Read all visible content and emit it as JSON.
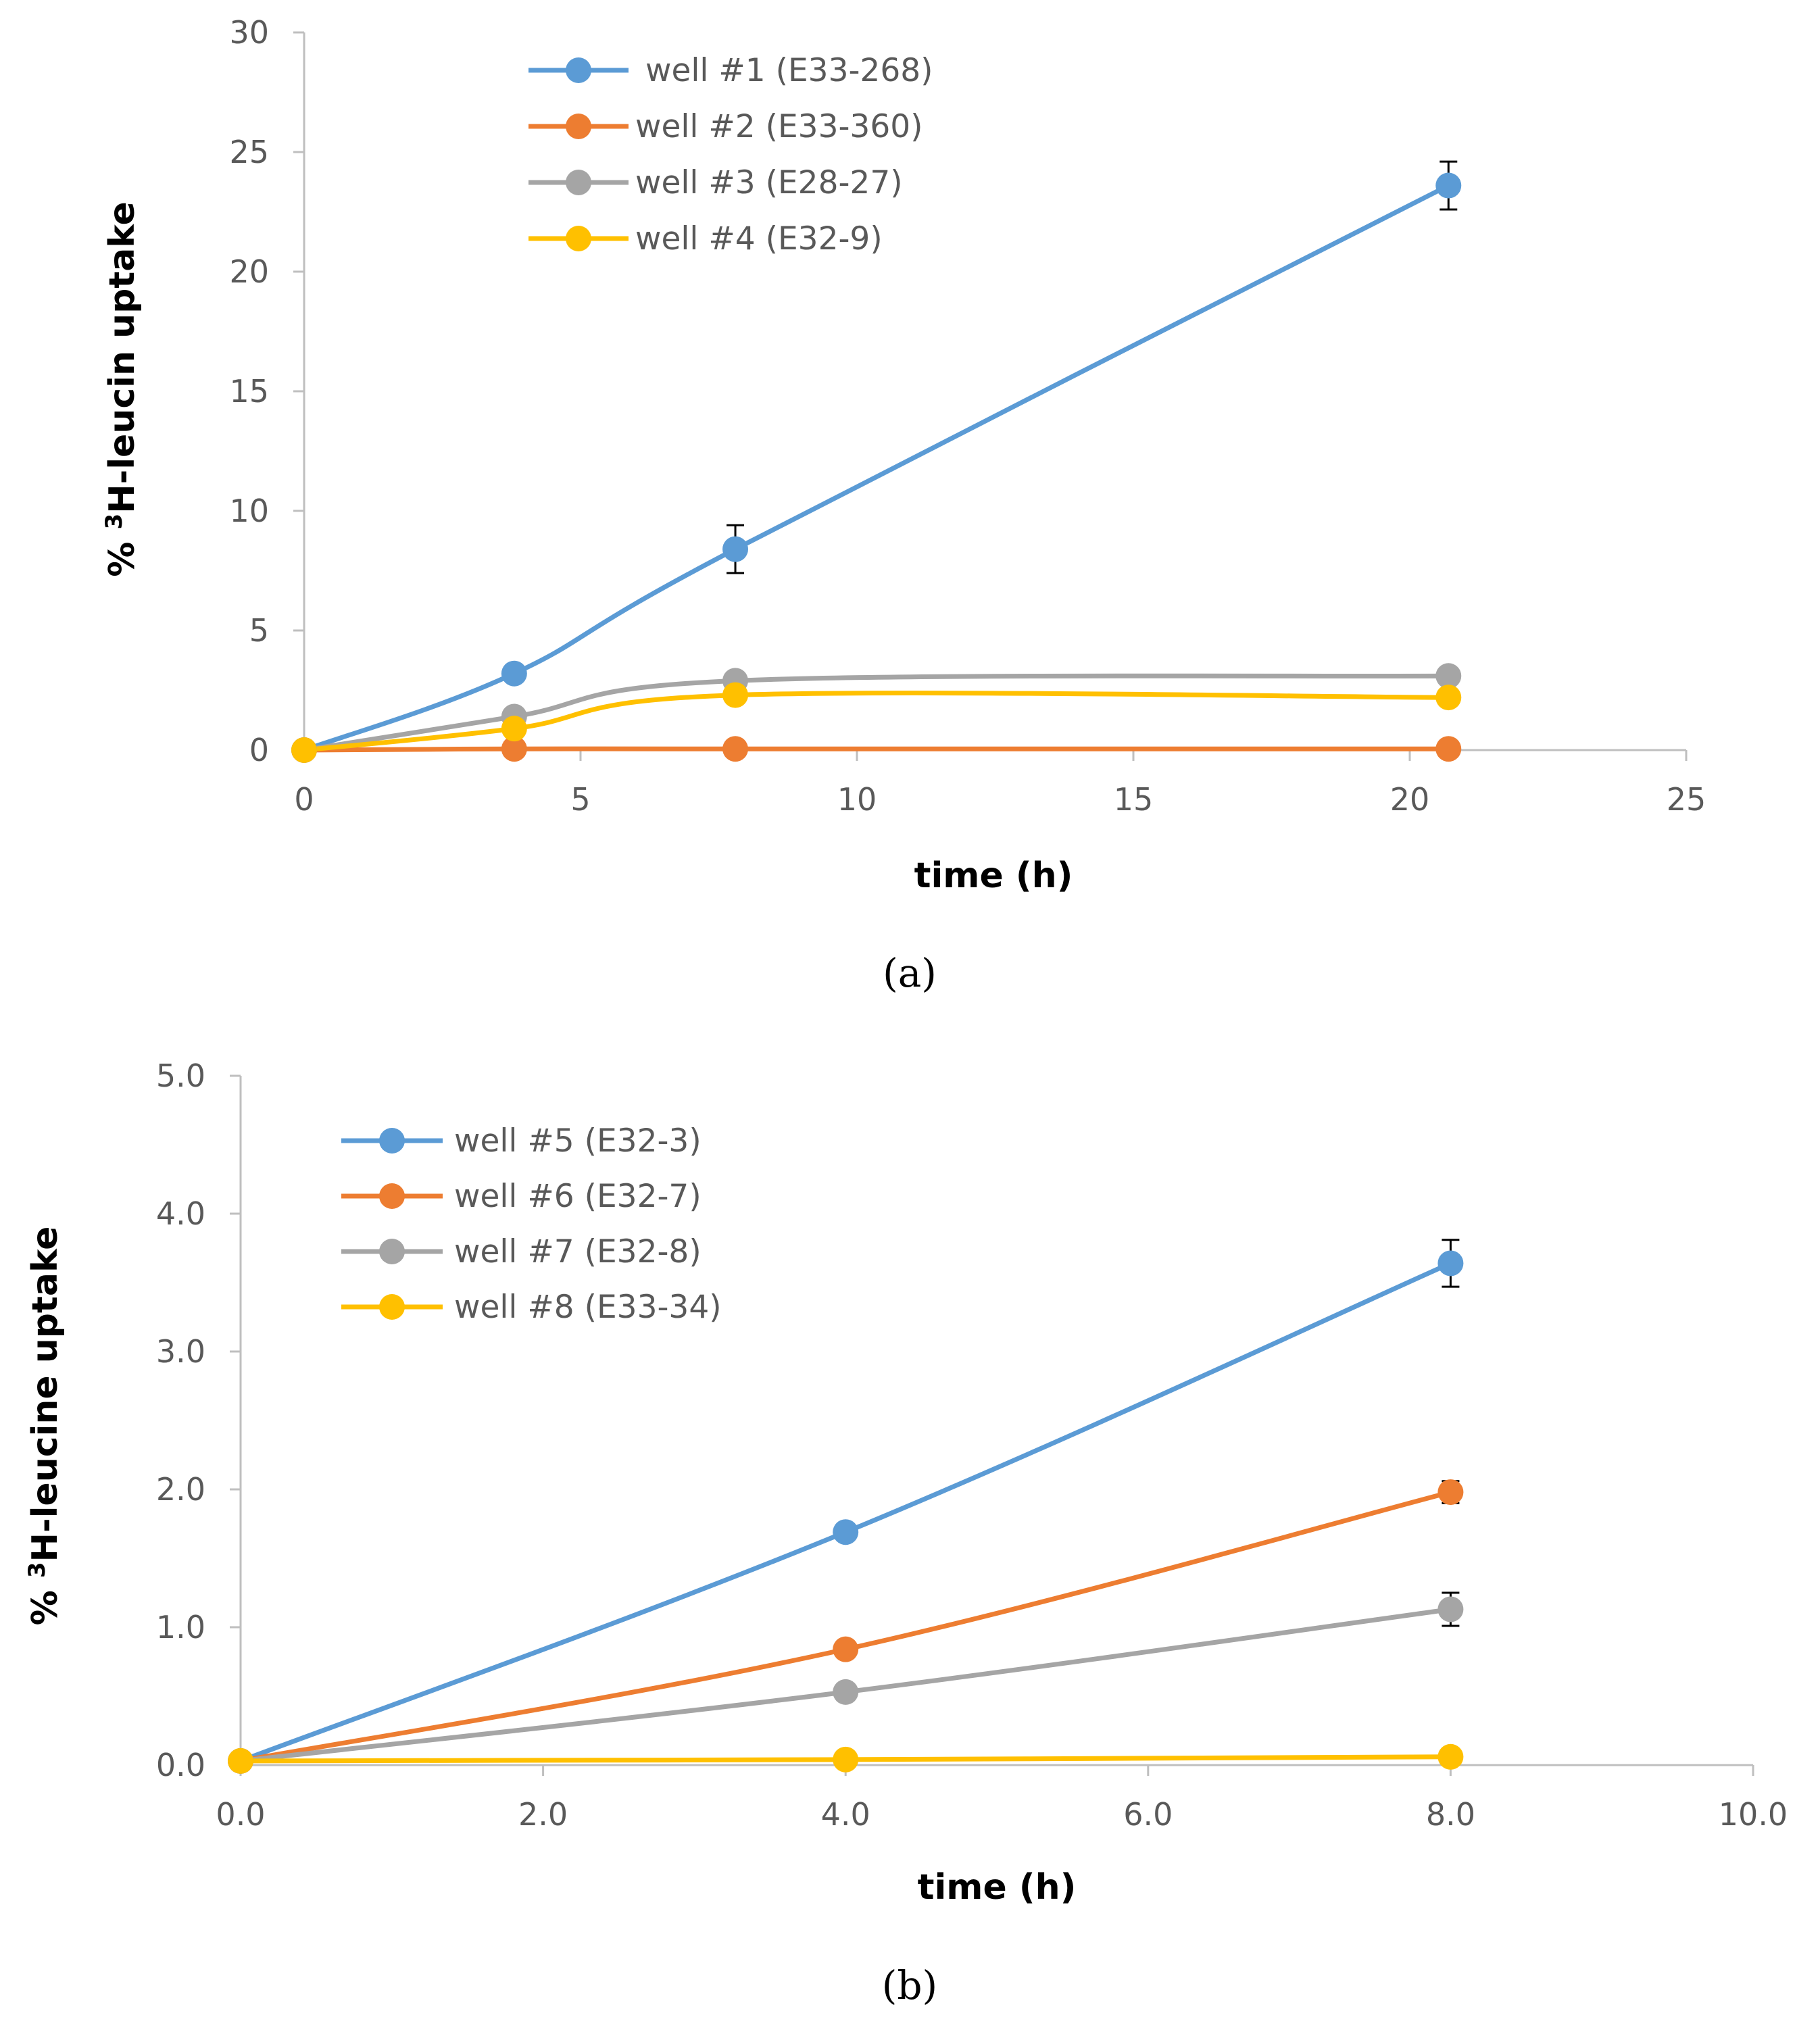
{
  "chart_data": [
    {
      "type": "line",
      "panel_label": "(a)",
      "title": "",
      "xlabel": "time (h)",
      "ylabel_parts": {
        "prefix": "% ",
        "sup": "3",
        "suffix": "H-leucin uptake"
      },
      "xlim": [
        0,
        25
      ],
      "ylim": [
        0,
        30
      ],
      "x_ticks": [
        0,
        5,
        10,
        15,
        20,
        25
      ],
      "x_tick_labels": [
        "0",
        "5",
        "10",
        "15",
        "20",
        "25"
      ],
      "y_ticks": [
        0,
        5,
        10,
        15,
        20,
        25,
        30
      ],
      "y_tick_labels": [
        "0",
        "5",
        "10",
        "15",
        "20",
        "25",
        "30"
      ],
      "grid": false,
      "legend_position": "top-left",
      "series": [
        {
          "name": "well #1 (E33-268)",
          "color": "#5b9bd5",
          "x": [
            0,
            3.8,
            7.8,
            20.7
          ],
          "values": [
            0,
            3.2,
            8.4,
            23.6
          ],
          "errors": [
            0,
            0,
            1.0,
            1.0
          ]
        },
        {
          "name": "well #2 (E33-360)",
          "color": "#ed7d31",
          "x": [
            0,
            3.8,
            7.8,
            20.7
          ],
          "values": [
            0,
            0.05,
            0.05,
            0.05
          ],
          "errors": [
            0,
            0,
            0,
            0
          ]
        },
        {
          "name": "well #3 (E28-27)",
          "color": "#a5a5a5",
          "x": [
            0,
            3.8,
            7.8,
            20.7
          ],
          "values": [
            0,
            1.4,
            2.9,
            3.1
          ],
          "errors": [
            0,
            0,
            0,
            0
          ]
        },
        {
          "name": "well #4 (E32-9)",
          "color": "#ffc000",
          "x": [
            0,
            3.8,
            7.8,
            20.7
          ],
          "values": [
            0,
            0.9,
            2.3,
            2.2
          ],
          "errors": [
            0,
            0,
            0,
            0
          ]
        }
      ]
    },
    {
      "type": "line",
      "panel_label": "(b)",
      "title": "",
      "xlabel": "time (h)",
      "ylabel_parts": {
        "prefix": "% ",
        "sup": "3",
        "suffix": "H-leucine uptake"
      },
      "xlim": [
        0,
        10
      ],
      "ylim": [
        0,
        5
      ],
      "x_ticks": [
        0,
        2,
        4,
        6,
        8,
        10
      ],
      "x_tick_labels": [
        "0.0",
        "2.0",
        "4.0",
        "6.0",
        "8.0",
        "10.0"
      ],
      "y_ticks": [
        0,
        1,
        2,
        3,
        4,
        5
      ],
      "y_tick_labels": [
        "0.0",
        "1.0",
        "2.0",
        "3.0",
        "4.0",
        "5.0"
      ],
      "grid": false,
      "legend_position": "top-left",
      "series": [
        {
          "name": "well #5 (E32-3)",
          "color": "#5b9bd5",
          "x": [
            0,
            4,
            8
          ],
          "values": [
            0.03,
            1.69,
            3.64
          ],
          "errors": [
            0,
            0,
            0.17
          ]
        },
        {
          "name": "well #6 (E32-7)",
          "color": "#ed7d31",
          "x": [
            0,
            4,
            8
          ],
          "values": [
            0.03,
            0.84,
            1.98
          ],
          "errors": [
            0,
            0,
            0.08
          ]
        },
        {
          "name": "well #7 (E32-8)",
          "color": "#a5a5a5",
          "x": [
            0,
            4,
            8
          ],
          "values": [
            0.03,
            0.53,
            1.13
          ],
          "errors": [
            0,
            0,
            0.12
          ]
        },
        {
          "name": "well #8 (E33-34)",
          "color": "#ffc000",
          "x": [
            0,
            4,
            8
          ],
          "values": [
            0.03,
            0.04,
            0.06
          ],
          "errors": [
            0,
            0,
            0
          ]
        }
      ]
    }
  ]
}
